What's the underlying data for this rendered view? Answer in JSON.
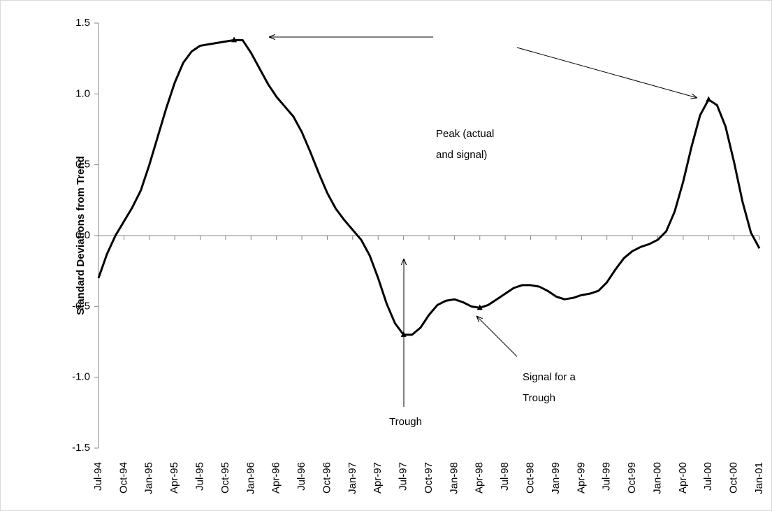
{
  "chart_data": {
    "type": "line",
    "y_label": "Standard Deviations from Trend",
    "categories": [
      "Jul-94",
      null,
      null,
      "Oct-94",
      null,
      null,
      "Jan-95",
      null,
      null,
      "Apr-95",
      null,
      null,
      "Jul-95",
      null,
      null,
      "Oct-95",
      null,
      null,
      "Jan-96",
      null,
      null,
      "Apr-96",
      null,
      null,
      "Jul-96",
      null,
      null,
      "Oct-96",
      null,
      null,
      "Jan-97",
      null,
      null,
      "Apr-97",
      null,
      null,
      "Jul-97",
      null,
      null,
      "Oct-97",
      null,
      null,
      "Jan-98",
      null,
      null,
      "Apr-98",
      null,
      null,
      "Jul-98",
      null,
      null,
      "Oct-98",
      null,
      null,
      "Jan-99",
      null,
      null,
      "Apr-99",
      null,
      null,
      "Jul-99",
      null,
      null,
      "Oct-99",
      null,
      null,
      "Jan-00",
      null,
      null,
      "Apr-00",
      null,
      null,
      "Jul-00",
      null,
      null,
      "Oct-00",
      null,
      null,
      "Jan-01"
    ],
    "values": [
      -0.3,
      -0.13,
      0.0,
      0.1,
      0.2,
      0.32,
      0.5,
      0.7,
      0.9,
      1.08,
      1.22,
      1.3,
      1.34,
      1.35,
      1.36,
      1.37,
      1.38,
      1.38,
      1.29,
      1.18,
      1.07,
      0.98,
      0.91,
      0.84,
      0.73,
      0.59,
      0.44,
      0.3,
      0.19,
      0.11,
      0.04,
      -0.03,
      -0.14,
      -0.3,
      -0.48,
      -0.62,
      -0.7,
      -0.7,
      -0.65,
      -0.56,
      -0.49,
      -0.46,
      -0.45,
      -0.47,
      -0.5,
      -0.51,
      -0.49,
      -0.45,
      -0.41,
      -0.37,
      -0.35,
      -0.35,
      -0.36,
      -0.39,
      -0.43,
      -0.45,
      -0.44,
      -0.42,
      -0.41,
      -0.39,
      -0.33,
      -0.24,
      -0.16,
      -0.11,
      -0.08,
      -0.06,
      -0.03,
      0.03,
      0.17,
      0.38,
      0.63,
      0.85,
      0.96,
      0.92,
      0.77,
      0.52,
      0.24,
      0.02,
      -0.09
    ],
    "color": "#000000",
    "ylim": [
      -1.5,
      1.5
    ],
    "yticks": [
      1.5,
      {
        "value": 1,
        "label": "1.0"
      },
      0.5,
      {
        "value": 0,
        "label": "0.0"
      },
      -0.5,
      {
        "value": -1,
        "label": "-1.0"
      },
      -1.5
    ],
    "annotations": [
      {
        "text": [
          "Peak (actual",
          "and signal)"
        ],
        "points": [
          16,
          72
        ]
      },
      {
        "text": [
          "Trough"
        ],
        "points": [
          36
        ]
      },
      {
        "text": [
          "Signal for a",
          "Trough"
        ],
        "points": [
          45
        ]
      }
    ]
  }
}
